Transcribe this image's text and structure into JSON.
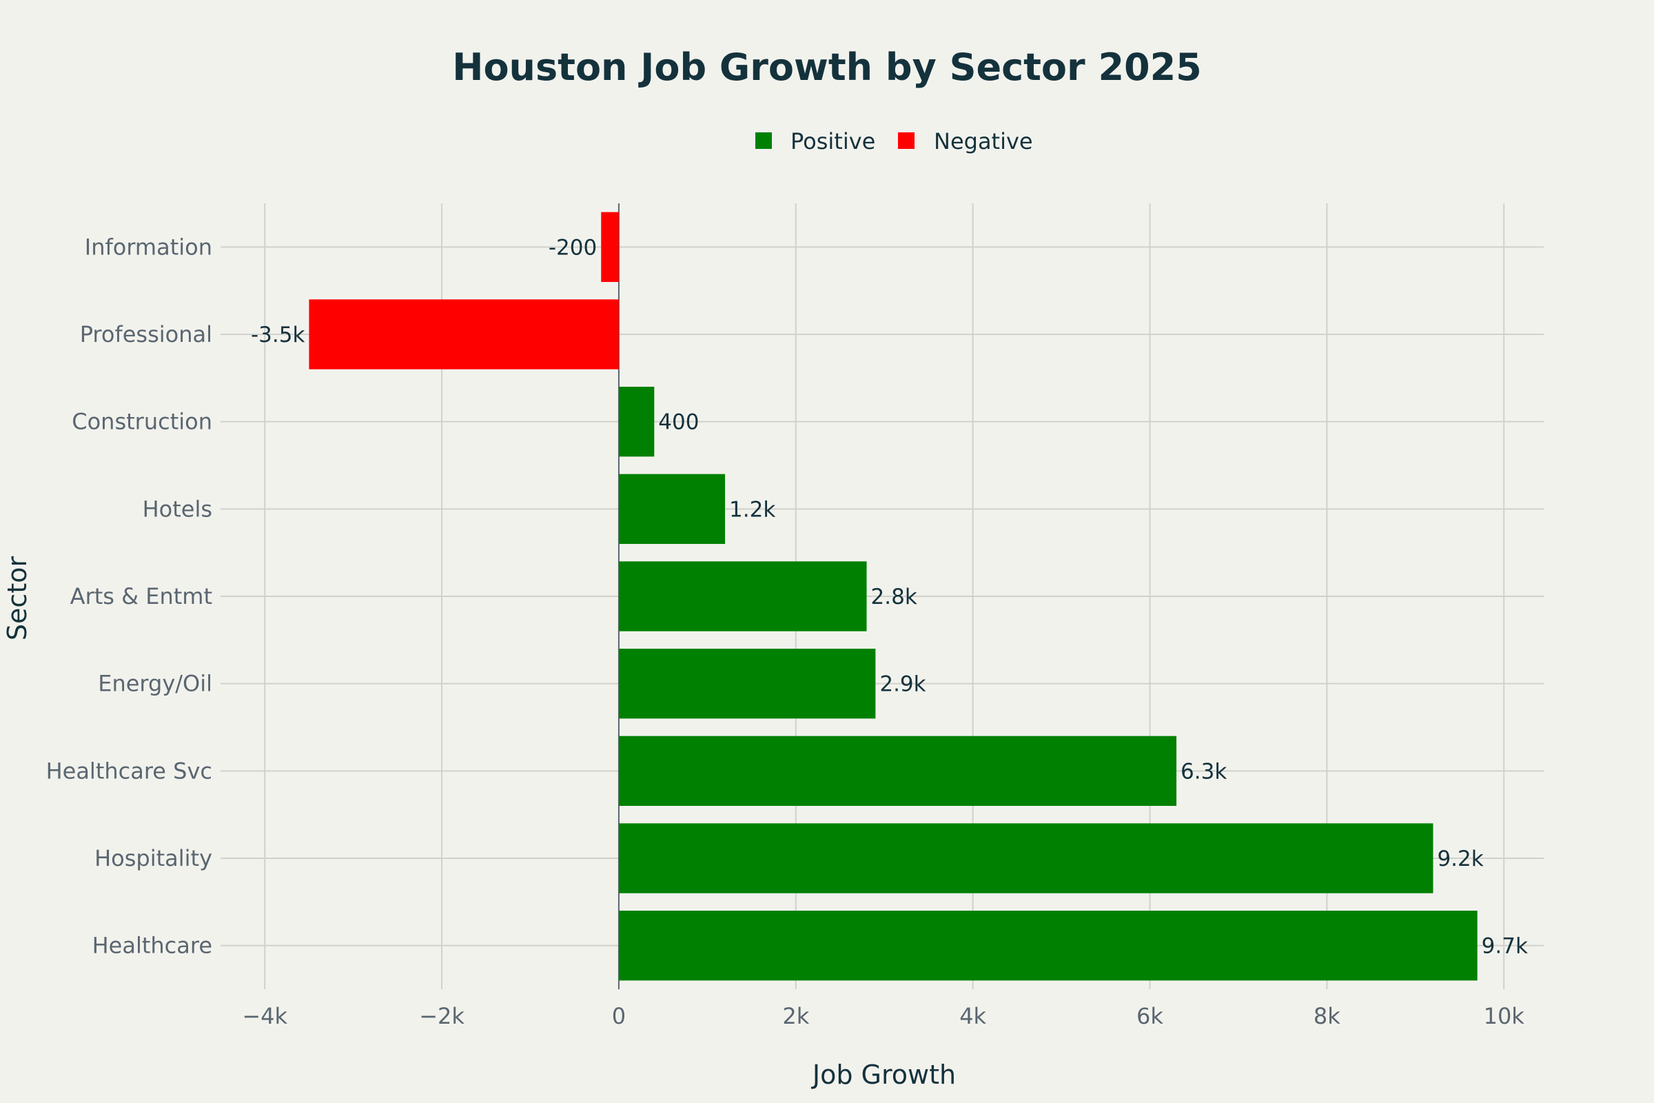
{
  "chart_data": {
    "type": "bar",
    "orientation": "horizontal",
    "title": "Houston Job Growth by Sector 2025",
    "xlabel": "Job Growth",
    "ylabel": "Sector",
    "categories": [
      "Information",
      "Professional",
      "Construction",
      "Hotels",
      "Arts & Entmt",
      "Energy/Oil",
      "Healthcare Svc",
      "Hospitality",
      "Healthcare"
    ],
    "values": [
      -200,
      -3500,
      400,
      1200,
      2800,
      2900,
      6300,
      9200,
      9700
    ],
    "data_labels": [
      "-200",
      "-3.5k",
      "400",
      "1.2k",
      "2.8k",
      "2.9k",
      "6.3k",
      "9.2k",
      "9.7k"
    ],
    "xlim": [
      -4500,
      10450
    ],
    "xticks": [
      -4000,
      -2000,
      0,
      2000,
      4000,
      6000,
      8000,
      10000
    ],
    "xtick_labels": [
      "−4k",
      "−2k",
      "0",
      "2k",
      "4k",
      "6k",
      "8k",
      "10k"
    ],
    "grid": true,
    "legend": {
      "position": "top-center",
      "entries": [
        {
          "name": "Positive",
          "color": "#008000"
        },
        {
          "name": "Negative",
          "color": "#ff0000"
        }
      ]
    },
    "colors": {
      "positive": "#008000",
      "negative": "#ff0000"
    }
  }
}
